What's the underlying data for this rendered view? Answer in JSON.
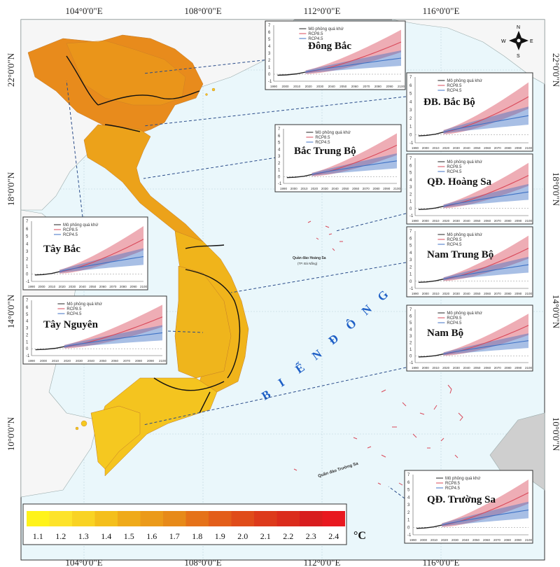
{
  "map": {
    "x_labels": [
      "104°0'0\"E",
      "108°0'0\"E",
      "112°0'0\"E",
      "116°0'0\"E"
    ],
    "y_labels": [
      "22°0'0\"N",
      "18°0'0\"N",
      "14°0'0\"N",
      "10°0'0\"N"
    ],
    "sea_letters": [
      "B",
      "I",
      "Ể",
      "N",
      "Đ",
      "Ô",
      "N",
      "G"
    ],
    "compass": {
      "n": "N",
      "s": "S",
      "e": "E",
      "w": "W"
    },
    "archipelago_1": "Quần đảo Hoàng Sa",
    "archipelago_1_sub": "(TP. Đà Nẵng)",
    "archipelago_2": "Quần đảo Trường Sa"
  },
  "legend": {
    "unit": "°C",
    "values": [
      "1.1",
      "1.2",
      "1.3",
      "1.4",
      "1.5",
      "1.6",
      "1.7",
      "1.8",
      "1.9",
      "2.0",
      "2.1",
      "2.2",
      "2.3",
      "2.4"
    ],
    "colors": [
      "#fff31a",
      "#fde32a",
      "#f9d323",
      "#f4bf1c",
      "#efaa1a",
      "#eb9a1a",
      "#e78a19",
      "#e57219",
      "#e35e1a",
      "#e04c1a",
      "#dd3a1b",
      "#db2c1c",
      "#d81d1e",
      "#e8181f"
    ]
  },
  "inset_legend": [
    "Mô phỏng quá khứ",
    "RCP8.5",
    "RCP4.5"
  ],
  "inset_years": [
    "1990",
    "2000",
    "2010",
    "2020",
    "2030",
    "2040",
    "2050",
    "2060",
    "2070",
    "2080",
    "2090",
    "2100"
  ],
  "inset_y_ticks": [
    "-1",
    "0",
    "1",
    "2",
    "3",
    "4",
    "5",
    "6",
    "7"
  ],
  "colors": {
    "rcp85": "#d9495a",
    "rcp45": "#3f72c5",
    "past": "#222222",
    "sea": "#eaf7fb"
  },
  "insets": [
    {
      "id": "dong-bac",
      "title": "Đông Bắc"
    },
    {
      "id": "db-bac-bo",
      "title": "ĐB. Bắc Bộ"
    },
    {
      "id": "bac-trung-bo",
      "title": "Bắc Trung Bộ"
    },
    {
      "id": "qd-hoang-sa",
      "title": "QĐ. Hoàng Sa"
    },
    {
      "id": "tay-bac",
      "title": "Tây Bắc"
    },
    {
      "id": "nam-trung-bo",
      "title": "Nam Trung Bộ"
    },
    {
      "id": "tay-nguyen",
      "title": "Tây Nguyên"
    },
    {
      "id": "nam-bo",
      "title": "Nam Bộ"
    },
    {
      "id": "qd-truong-sa",
      "title": "QĐ. Trường Sa"
    }
  ]
}
